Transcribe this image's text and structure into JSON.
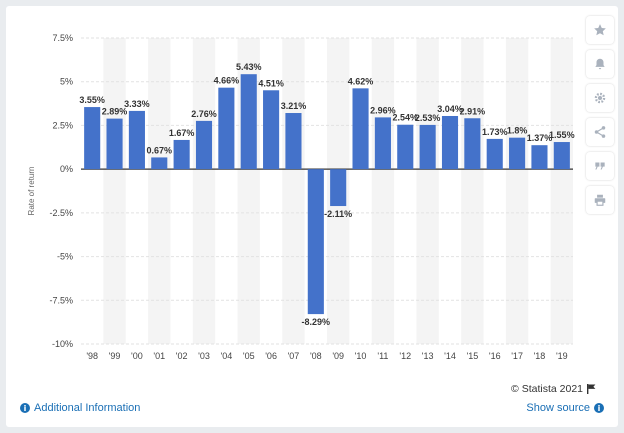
{
  "chart_data": {
    "type": "bar",
    "categories": [
      "'98",
      "'99",
      "'00",
      "'01",
      "'02",
      "'03",
      "'04",
      "'05",
      "'06",
      "'07",
      "'08",
      "'09",
      "'10",
      "'11",
      "'12",
      "'13",
      "'14",
      "'15",
      "'16",
      "'17",
      "'18",
      "'19"
    ],
    "values": [
      3.55,
      2.89,
      3.33,
      0.67,
      1.67,
      2.76,
      4.66,
      5.43,
      4.51,
      3.21,
      -8.29,
      -2.11,
      4.62,
      2.96,
      2.54,
      2.53,
      3.04,
      2.91,
      1.73,
      1.8,
      1.37,
      1.55
    ],
    "data_labels": [
      "3.55%",
      "2.89%",
      "3.33%",
      "0.67%",
      "1.67%",
      "2.76%",
      "4.66%",
      "5.43%",
      "4.51%",
      "3.21%",
      "-8.29%",
      "-2.11%",
      "4.62%",
      "2.96%",
      "2.54%",
      "2.53%",
      "3.04%",
      "2.91%",
      "1.73%",
      "1.8%",
      "1.37%",
      "1.55%"
    ],
    "ylabel": "Rate of return",
    "xlabel": "",
    "ylim": [
      -10,
      7.5
    ],
    "yticks": [
      7.5,
      5,
      2.5,
      0,
      -2.5,
      -5,
      -7.5,
      -10
    ],
    "ytick_labels": [
      "7.5%",
      "5%",
      "2.5%",
      "0%",
      "-2.5%",
      "-5%",
      "-7.5%",
      "-10%"
    ],
    "bar_color": "#4472ca",
    "band_color": "#f4f4f4",
    "grid": true
  },
  "toolbar": {
    "icons": [
      "star-icon",
      "bell-icon",
      "gear-icon",
      "share-icon",
      "quote-icon",
      "print-icon"
    ]
  },
  "footer": {
    "credit": "© Statista 2021",
    "additional_info": "Additional Information",
    "show_source": "Show source"
  },
  "colors": {
    "accent": "#1a6fb5",
    "background": "#e9ecef",
    "icon": "#aab2bd"
  }
}
